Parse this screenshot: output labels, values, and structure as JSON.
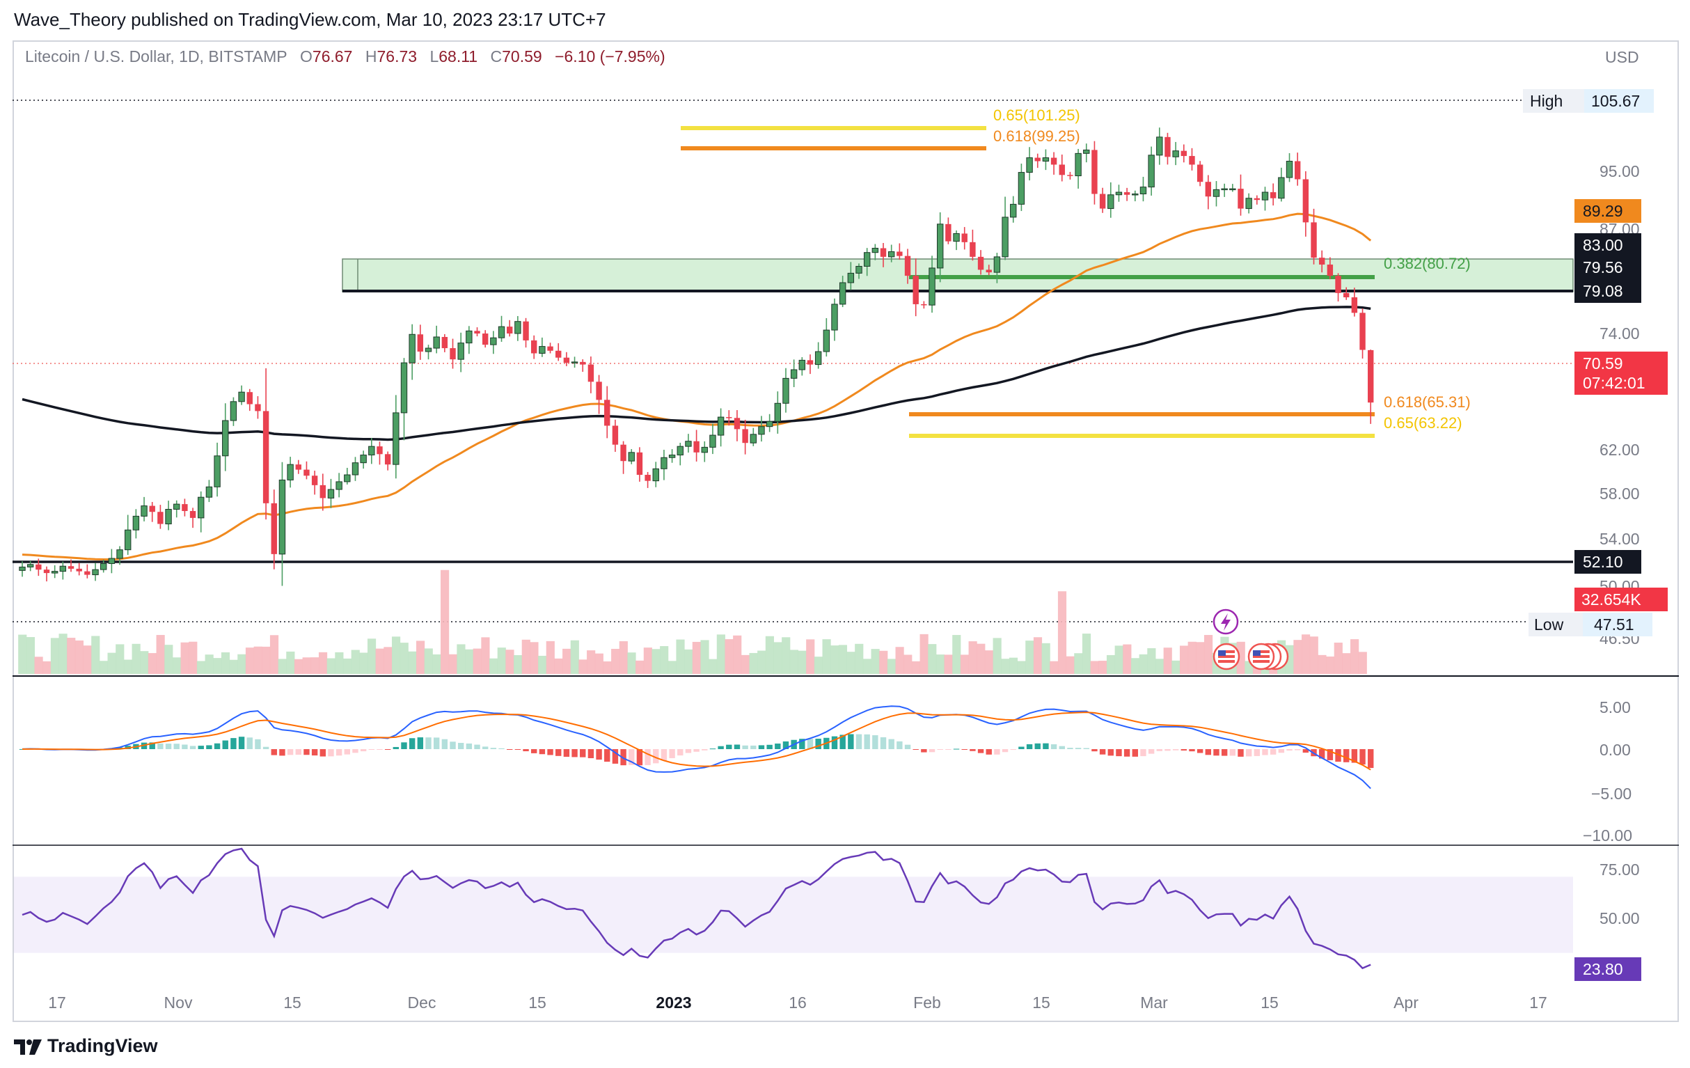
{
  "header": {
    "published_line": "Wave_Theory published on TradingView.com, Mar 10, 2023 23:17 UTC+7"
  },
  "legend": {
    "symbol": "Litecoin / U.S. Dollar, 1D, BITSTAMP",
    "o_label": "O",
    "o_value": "76.67",
    "h_label": "H",
    "h_value": "76.73",
    "l_label": "L",
    "l_value": "68.11",
    "c_label": "C",
    "c_value": "70.59",
    "change": "−6.10 (−7.95%)"
  },
  "price_axis": {
    "currency": "USD",
    "ticks": [
      "95.00",
      "87.00",
      "74.00",
      "62.00",
      "58.00",
      "54.00",
      "50.00",
      "46.50"
    ],
    "tags": {
      "high_label": "High",
      "high_value": "105.67",
      "low_label": "Low",
      "low_value": "47.51",
      "ema50": "89.29",
      "resistance": "83.00",
      "zone_top": "79.56",
      "zone_bottom": "79.08",
      "last_price": "70.59",
      "countdown": "07:42:01",
      "support": "52.10",
      "volume": "32.654K"
    }
  },
  "fib_labels": {
    "upper_065": "0.65(101.25)",
    "upper_0618": "0.618(99.25)",
    "mid_0382": "0.382(80.72)",
    "lower_0618": "0.618(65.31)",
    "lower_065": "0.65(63.22)"
  },
  "time_axis": [
    "17",
    "Nov",
    "15",
    "Dec",
    "15",
    "2023",
    "16",
    "Feb",
    "15",
    "Mar",
    "15",
    "Apr",
    "17"
  ],
  "macd_axis": [
    "5.00",
    "0.00",
    "−5.00",
    "−10.00"
  ],
  "rsi_axis": [
    "75.00",
    "50.00"
  ],
  "rsi_tag": "23.80",
  "footer": {
    "brand": "TradingView"
  },
  "colors": {
    "bull": "#26a69a",
    "bull_body": "#4c9e63",
    "bear": "#ef5350",
    "ema50": "#f0891e",
    "ma200": "#131722",
    "fib_gold": "#f3e141",
    "fib_orange": "#f0891e",
    "fib_green": "#43a047",
    "zone_fill": "#d6f0d8",
    "macd": "#2962ff",
    "signal": "#ff6d00",
    "rsi": "#673ab7"
  },
  "chart_data": {
    "type": "candlestick",
    "series_name": "Litecoin / U.S. Dollar, 1D, BITSTAMP",
    "y_range": [
      44,
      108
    ],
    "last": {
      "open": 76.67,
      "high": 76.73,
      "low": 68.11,
      "close": 70.59
    },
    "levels": {
      "high": 105.67,
      "low": 47.51,
      "ema50_last": 89.29,
      "resistance": 83.0,
      "zone": [
        79.08,
        79.56
      ],
      "support": 52.1,
      "fib_upper": {
        "0.65": 101.25,
        "0.618": 99.25
      },
      "fib_mid": {
        "0.382": 80.72
      },
      "fib_lower": {
        "0.618": 65.31,
        "0.65": 63.22
      }
    },
    "closes": [
      51.5,
      51.8,
      51.2,
      50.8,
      51.0,
      51.6,
      51.3,
      51.0,
      50.6,
      51.2,
      51.9,
      52.5,
      53.5,
      55.8,
      57.4,
      58.6,
      57.9,
      56.5,
      58.2,
      58.8,
      58.0,
      57.2,
      59.6,
      60.8,
      64.4,
      68.5,
      70.7,
      71.8,
      70.4,
      69.6,
      58.9,
      53.0,
      61.6,
      63.4,
      62.8,
      62.1,
      61.0,
      59.5,
      60.5,
      61.4,
      62.2,
      63.6,
      64.5,
      65.5,
      64.6,
      63.4,
      69.4,
      75.2,
      78.5,
      76.5,
      76.9,
      78.2,
      76.9,
      75.6,
      77.5,
      78.9,
      78.6,
      77.3,
      78.1,
      79.4,
      78.6,
      80.0,
      77.8,
      76.3,
      77.1,
      76.6,
      75.8,
      75.2,
      75.3,
      75.0,
      73.0,
      70.9,
      67.9,
      65.7,
      63.8,
      64.8,
      62.2,
      61.5,
      62.9,
      64.2,
      64.5,
      65.5,
      66.1,
      64.8,
      65.4,
      66.8,
      68.9,
      68.8,
      67.5,
      65.9,
      66.9,
      67.8,
      68.4,
      70.5,
      73.4,
      74.4,
      75.5,
      75.0,
      76.5,
      79.0,
      82.0,
      84.5,
      85.6,
      86.4,
      88.0,
      88.5,
      87.5,
      88.1,
      87.6,
      85.3,
      82.0,
      81.9,
      86.2,
      91.3,
      89.3,
      90.2,
      89.2,
      87.5,
      86.0,
      85.7,
      87.5,
      92.1,
      93.6,
      97.3,
      99.0,
      98.6,
      99.0,
      98.2,
      97.0,
      96.9,
      99.5,
      99.9,
      94.8,
      93.1,
      94.7,
      95.0,
      94.7,
      94.8,
      95.6,
      99.3,
      101.4,
      99.1,
      99.8,
      99.2,
      98.2,
      96.2,
      94.5,
      95.3,
      95.4,
      95.4,
      93.1,
      94.3,
      94.1,
      95.0,
      94.3,
      96.7,
      98.6,
      96.5,
      91.5,
      87.4,
      86.6,
      85.3,
      83.3,
      82.8,
      81.0,
      76.7,
      70.59
    ],
    "macd": {
      "values_range": [
        -4,
        4.5
      ]
    },
    "rsi": {
      "last": 23.8,
      "band": [
        30,
        70
      ]
    }
  }
}
